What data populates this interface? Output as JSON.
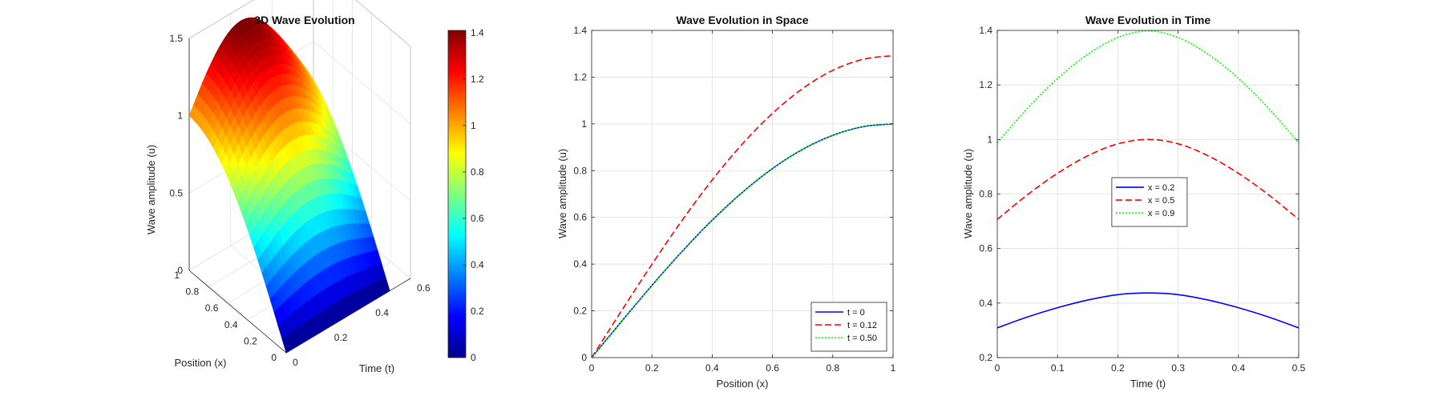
{
  "chart_data": [
    {
      "type": "surface",
      "title": "3D Wave Evolution",
      "xlabel": "Position (x)",
      "ylabel": "Time (t)",
      "zlabel": "Wave amplitude (u)",
      "xticks": [
        "0",
        "0.2",
        "0.4",
        "0.6",
        "0.8",
        "1"
      ],
      "yticks": [
        "0",
        "0.2",
        "0.4",
        "0.6"
      ],
      "zticks": [
        "0",
        "0.5",
        "1",
        "1.5"
      ],
      "xlim": [
        0,
        1
      ],
      "ylim": [
        0,
        0.6
      ],
      "zlim": [
        0,
        1.5
      ],
      "surface": {
        "x": [
          0,
          0.25,
          0.5,
          0.75,
          1
        ],
        "t": [
          0,
          0.125,
          0.25,
          0.375,
          0.5
        ],
        "u": [
          [
            0.0,
            0.0,
            0.0,
            0.0,
            0.0
          ],
          [
            0.38,
            0.49,
            0.54,
            0.49,
            0.38
          ],
          [
            0.71,
            0.91,
            1.0,
            0.91,
            0.71
          ],
          [
            0.92,
            1.19,
            1.31,
            1.19,
            0.92
          ],
          [
            1.0,
            1.29,
            1.41,
            1.29,
            1.0
          ]
        ]
      },
      "colorbar": {
        "ticks": [
          "0",
          "0.2",
          "0.4",
          "0.6",
          "0.8",
          "1",
          "1.2",
          "1.4"
        ],
        "range": [
          0,
          1.41
        ],
        "colormap": "jet"
      },
      "grid": true
    },
    {
      "type": "line",
      "title": "Wave Evolution in Space",
      "xlabel": "Position (x)",
      "ylabel": "Wave amplitude (u)",
      "xlim": [
        0,
        1
      ],
      "ylim": [
        0,
        1.4
      ],
      "xticks": [
        "0",
        "0.2",
        "0.4",
        "0.6",
        "0.8",
        "1"
      ],
      "yticks": [
        "0",
        "0.2",
        "0.4",
        "0.6",
        "0.8",
        "1",
        "1.2",
        "1.4"
      ],
      "x": [
        0,
        0.1,
        0.2,
        0.3,
        0.4,
        0.5,
        0.6,
        0.7,
        0.8,
        0.9,
        1.0
      ],
      "series": [
        {
          "name": "t = 0",
          "color": "#0000ff",
          "dash": "solid",
          "values": [
            0,
            0.156,
            0.309,
            0.454,
            0.588,
            0.707,
            0.809,
            0.891,
            0.951,
            0.988,
            1.0
          ]
        },
        {
          "name": "t = 0.12",
          "color": "#ff0000",
          "dash": "dashed",
          "values": [
            0,
            0.202,
            0.399,
            0.587,
            0.76,
            0.914,
            1.045,
            1.151,
            1.229,
            1.276,
            1.292
          ]
        },
        {
          "name": "t = 0.50",
          "color": "#00ff00",
          "dash": "dotted",
          "values": [
            0,
            0.156,
            0.309,
            0.454,
            0.588,
            0.707,
            0.809,
            0.891,
            0.951,
            0.988,
            1.0
          ]
        }
      ],
      "legend": "bottom-right",
      "grid": true
    },
    {
      "type": "line",
      "title": "Wave Evolution in Time",
      "xlabel": "Time (t)",
      "ylabel": "Wave amplitude (u)",
      "xlim": [
        0,
        0.5
      ],
      "ylim": [
        0.2,
        1.4
      ],
      "xticks": [
        "0",
        "0.1",
        "0.2",
        "0.3",
        "0.4",
        "0.5"
      ],
      "yticks": [
        "0.2",
        "0.4",
        "0.6",
        "0.8",
        "1",
        "1.2",
        "1.4"
      ],
      "x": [
        0,
        0.05,
        0.1,
        0.15,
        0.2,
        0.25,
        0.3,
        0.35,
        0.4,
        0.45,
        0.5
      ],
      "series": [
        {
          "name": "x = 0.2",
          "color": "#0000ff",
          "dash": "solid",
          "values": [
            0.309,
            0.349,
            0.383,
            0.411,
            0.431,
            0.437,
            0.431,
            0.411,
            0.383,
            0.349,
            0.309
          ]
        },
        {
          "name": "x = 0.5",
          "color": "#ff0000",
          "dash": "dashed",
          "values": [
            0.707,
            0.797,
            0.876,
            0.94,
            0.984,
            1.0,
            0.984,
            0.94,
            0.876,
            0.797,
            0.707
          ]
        },
        {
          "name": "x = 0.9",
          "color": "#00ff00",
          "dash": "dotted",
          "values": [
            0.988,
            1.114,
            1.224,
            1.312,
            1.374,
            1.398,
            1.374,
            1.312,
            1.224,
            1.114,
            0.988
          ]
        }
      ],
      "legend": "center",
      "grid": true
    }
  ]
}
